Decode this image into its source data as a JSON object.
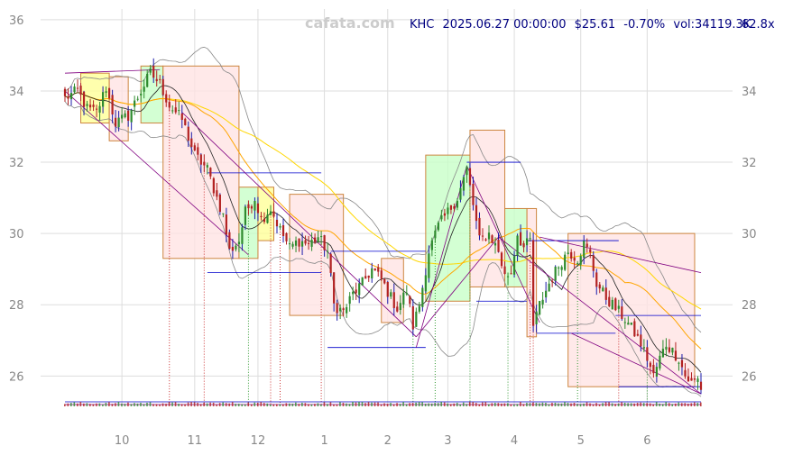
{
  "watermark": "cafata.com",
  "header": {
    "ticker": "KHC",
    "datetime": "2025.06.27 00:00:00",
    "price": "$25.61",
    "change": "-0.70%",
    "volume": "vol:34119.3K",
    "ratio": "62.8x"
  },
  "chart_data": {
    "type": "candlestick",
    "ylim": [
      25.3,
      36.3
    ],
    "y_ticks": [
      26,
      28,
      30,
      32,
      34,
      36
    ],
    "y_ticks_right": [
      26,
      28,
      30,
      32,
      34
    ],
    "x_ticks": [
      {
        "label": "10",
        "idx": 18
      },
      {
        "label": "11",
        "idx": 41
      },
      {
        "label": "12",
        "idx": 61
      },
      {
        "label": "1",
        "idx": 82
      },
      {
        "label": "2",
        "idx": 102
      },
      {
        "label": "3",
        "idx": 121
      },
      {
        "label": "4",
        "idx": 142
      },
      {
        "label": "5",
        "idx": 163
      },
      {
        "label": "6",
        "idx": 184
      }
    ],
    "n_bars": 202,
    "grid": true,
    "anchors": [
      [
        0,
        33.8
      ],
      [
        4,
        34.0
      ],
      [
        7,
        33.5
      ],
      [
        10,
        33.4
      ],
      [
        13,
        34.1
      ],
      [
        16,
        33.1
      ],
      [
        20,
        33.3
      ],
      [
        24,
        34.0
      ],
      [
        27,
        34.5
      ],
      [
        30,
        34.2
      ],
      [
        33,
        33.6
      ],
      [
        37,
        33.2
      ],
      [
        41,
        32.2
      ],
      [
        45,
        31.8
      ],
      [
        48,
        31.0
      ],
      [
        50,
        30.5
      ],
      [
        52,
        29.5
      ],
      [
        55,
        29.8
      ],
      [
        57,
        30.6
      ],
      [
        60,
        31.0
      ],
      [
        62,
        30.4
      ],
      [
        65,
        30.7
      ],
      [
        68,
        30.1
      ],
      [
        71,
        29.6
      ],
      [
        74,
        29.8
      ],
      [
        77,
        29.7
      ],
      [
        80,
        29.9
      ],
      [
        83,
        29.5
      ],
      [
        85,
        28.0
      ],
      [
        88,
        27.8
      ],
      [
        91,
        28.3
      ],
      [
        94,
        28.6
      ],
      [
        97,
        29.0
      ],
      [
        100,
        28.7
      ],
      [
        103,
        28.2
      ],
      [
        105,
        27.9
      ],
      [
        108,
        28.4
      ],
      [
        110,
        27.4
      ],
      [
        112,
        28.0
      ],
      [
        115,
        29.5
      ],
      [
        118,
        30.2
      ],
      [
        121,
        30.6
      ],
      [
        124,
        31.0
      ],
      [
        127,
        31.8
      ],
      [
        129,
        30.8
      ],
      [
        131,
        29.8
      ],
      [
        134,
        30.0
      ],
      [
        137,
        29.5
      ],
      [
        139,
        28.8
      ],
      [
        141,
        28.9
      ],
      [
        143,
        30.0
      ],
      [
        145,
        29.6
      ],
      [
        147,
        29.8
      ],
      [
        148,
        27.4
      ],
      [
        150,
        28.0
      ],
      [
        153,
        28.6
      ],
      [
        156,
        29.1
      ],
      [
        159,
        29.5
      ],
      [
        162,
        29.3
      ],
      [
        164,
        29.7
      ],
      [
        166,
        29.4
      ],
      [
        168,
        28.6
      ],
      [
        171,
        28.2
      ],
      [
        174,
        27.9
      ],
      [
        177,
        27.6
      ],
      [
        180,
        27.2
      ],
      [
        182,
        26.9
      ],
      [
        184,
        26.5
      ],
      [
        186,
        26.0
      ],
      [
        188,
        26.5
      ],
      [
        190,
        26.9
      ],
      [
        192,
        26.7
      ],
      [
        194,
        26.5
      ],
      [
        196,
        26.0
      ],
      [
        198,
        25.8
      ],
      [
        200,
        25.9
      ],
      [
        201,
        25.61
      ]
    ],
    "boxes": [
      {
        "i0": 5,
        "i1": 14,
        "lo": 33.1,
        "hi": 34.5,
        "kind": "yellow"
      },
      {
        "i0": 14,
        "i1": 20,
        "lo": 32.6,
        "hi": 34.4,
        "kind": "red"
      },
      {
        "i0": 24,
        "i1": 31,
        "lo": 33.1,
        "hi": 34.7,
        "kind": "green"
      },
      {
        "i0": 31,
        "i1": 55,
        "lo": 29.3,
        "hi": 34.7,
        "kind": "red"
      },
      {
        "i0": 55,
        "i1": 61,
        "lo": 29.3,
        "hi": 31.3,
        "kind": "green"
      },
      {
        "i0": 61,
        "i1": 66,
        "lo": 29.8,
        "hi": 31.3,
        "kind": "yellow"
      },
      {
        "i0": 71,
        "i1": 88,
        "lo": 27.7,
        "hi": 31.1,
        "kind": "red"
      },
      {
        "i0": 100,
        "i1": 107,
        "lo": 27.5,
        "hi": 29.3,
        "kind": "red"
      },
      {
        "i0": 114,
        "i1": 128,
        "lo": 28.1,
        "hi": 32.2,
        "kind": "green"
      },
      {
        "i0": 128,
        "i1": 139,
        "lo": 28.5,
        "hi": 32.9,
        "kind": "red"
      },
      {
        "i0": 139,
        "i1": 146,
        "lo": 28.5,
        "hi": 30.7,
        "kind": "green"
      },
      {
        "i0": 146,
        "i1": 149,
        "lo": 27.1,
        "hi": 30.7,
        "kind": "red"
      },
      {
        "i0": 159,
        "i1": 199,
        "lo": 25.7,
        "hi": 30.0,
        "kind": "red"
      }
    ],
    "hlines": [
      {
        "i0": 45,
        "i1": 81,
        "y": 31.7
      },
      {
        "i0": 45,
        "i1": 81,
        "y": 28.9
      },
      {
        "i0": 83,
        "i1": 114,
        "y": 26.8
      },
      {
        "i0": 84,
        "i1": 114,
        "y": 29.5
      },
      {
        "i0": 127,
        "i1": 144,
        "y": 32.0
      },
      {
        "i0": 130,
        "i1": 146,
        "y": 28.1
      },
      {
        "i0": 146,
        "i1": 175,
        "y": 29.8
      },
      {
        "i0": 149,
        "i1": 174,
        "y": 27.2
      },
      {
        "i0": 174,
        "i1": 201,
        "y": 27.7
      },
      {
        "i0": 175,
        "i1": 201,
        "y": 25.7
      }
    ],
    "trendlines": [
      {
        "p1": [
          0,
          34.0
        ],
        "p2": [
          58,
          29.4
        ]
      },
      {
        "p1": [
          37,
          33.4
        ],
        "p2": [
          111,
          27.1
        ]
      },
      {
        "p1": [
          111,
          26.8
        ],
        "p2": [
          127,
          31.9
        ]
      },
      {
        "p1": [
          111,
          27.1
        ],
        "p2": [
          137,
          29.9
        ]
      },
      {
        "p1": [
          127,
          31.9
        ],
        "p2": [
          150,
          27.5
        ]
      },
      {
        "p1": [
          137,
          29.9
        ],
        "p2": [
          201,
          25.5
        ]
      },
      {
        "p1": [
          150,
          29.9
        ],
        "p2": [
          201,
          28.9
        ]
      },
      {
        "p1": [
          160,
          27.2
        ],
        "p2": [
          201,
          25.5
        ]
      },
      {
        "p1": [
          0,
          34.5
        ],
        "p2": [
          30,
          34.6
        ]
      }
    ],
    "vlines": [
      {
        "i": 33,
        "color": "#cc3333"
      },
      {
        "i": 44,
        "color": "#cc3333"
      },
      {
        "i": 58,
        "color": "#339933"
      },
      {
        "i": 65,
        "color": "#cc3333"
      },
      {
        "i": 68,
        "color": "#cc3333"
      },
      {
        "i": 81,
        "color": "#cc3333"
      },
      {
        "i": 110,
        "color": "#339933"
      },
      {
        "i": 117,
        "color": "#339933"
      },
      {
        "i": 128,
        "color": "#339933"
      },
      {
        "i": 140,
        "color": "#339933"
      },
      {
        "i": 147,
        "color": "#cc3333"
      },
      {
        "i": 148,
        "color": "#cc3333"
      },
      {
        "i": 162,
        "color": "#339933"
      },
      {
        "i": 175,
        "color": "#cc3333"
      },
      {
        "i": 184,
        "color": "#339933"
      }
    ],
    "colors": {
      "up": "#2e8b2e",
      "down": "#b22222",
      "spike": "#1a1aaa",
      "ma_fast": "#222222",
      "ma_mid": "#ffa500",
      "ma_slow": "#ffd700",
      "band": "#888888",
      "trend": "#800080",
      "hline": "#0000cc",
      "box_red_fill": "#ffe4e4",
      "box_red_stroke": "#cd853f",
      "box_green_fill": "#c8ffc8",
      "box_green_stroke": "#cd853f",
      "box_yellow_fill": "#ffff99",
      "box_yellow_stroke": "#cd853f"
    }
  }
}
